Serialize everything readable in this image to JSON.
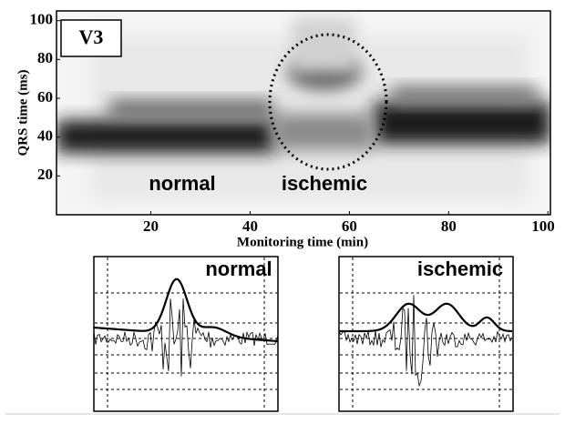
{
  "chart_data": {
    "type": "density",
    "panel_label": "V3",
    "xlabel": "Monitoring time (min)",
    "ylabel": "QRS time (ms)",
    "xlim": [
      1,
      100.5
    ],
    "ylim": [
      0,
      105
    ],
    "xticks": [
      20,
      40,
      60,
      80,
      100
    ],
    "yticks": [
      20,
      40,
      60,
      80,
      100
    ],
    "annotations": [
      "normal",
      "ischemic"
    ],
    "insets": [
      {
        "title": "normal"
      },
      {
        "title": "ischemic"
      }
    ]
  }
}
